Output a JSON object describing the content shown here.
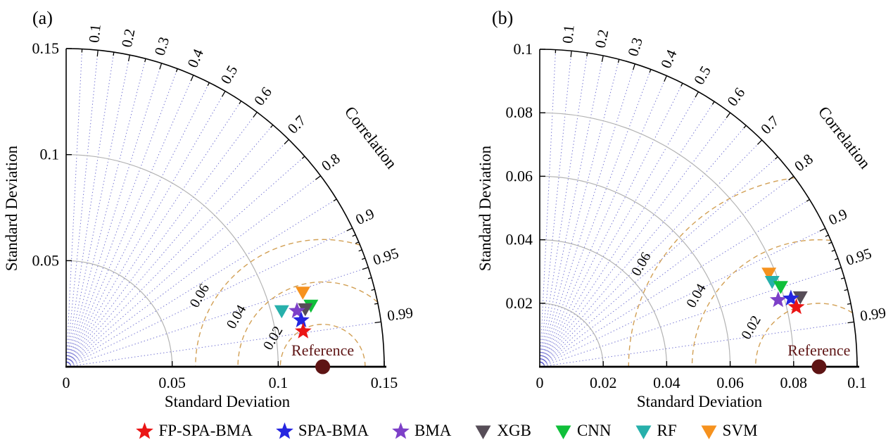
{
  "figure_background": "#ffffff",
  "models": [
    {
      "name": "FP-SPA-BMA",
      "marker": "star",
      "color": "#ea1515"
    },
    {
      "name": "SPA-BMA",
      "marker": "star",
      "color": "#2525e0"
    },
    {
      "name": "BMA",
      "marker": "star",
      "color": "#7d40c8"
    },
    {
      "name": "XGB",
      "marker": "triangle-down",
      "color": "#564d57"
    },
    {
      "name": "CNN",
      "marker": "triangle-down",
      "color": "#10bf3a"
    },
    {
      "name": "RF",
      "marker": "triangle-down",
      "color": "#27b0ab"
    },
    {
      "name": "SVM",
      "marker": "triangle-down",
      "color": "#f6921e"
    }
  ],
  "colors": {
    "correlation_ray": "#5050c8",
    "std_arc": "#b3b3b3",
    "rmse_arc": "#d2a055",
    "axis": "#000000",
    "reference": "#5e1414",
    "text": "#000000"
  },
  "chart_data": [
    {
      "type": "taylor",
      "panel_label": "(a)",
      "xlabel": "Standard Deviation",
      "ylabel": "Standard Deviation",
      "correlation_label": "Correlation",
      "axis_max": 0.15,
      "std_ticks": [
        {
          "value": 0,
          "label": "0"
        },
        {
          "value": 0.05,
          "label": "0.05"
        },
        {
          "value": 0.1,
          "label": "0.1"
        },
        {
          "value": 0.15,
          "label": "0.15"
        }
      ],
      "corr_labeled_ticks": [
        {
          "value": 0.1,
          "label": "0.1"
        },
        {
          "value": 0.2,
          "label": "0.2"
        },
        {
          "value": 0.3,
          "label": "0.3"
        },
        {
          "value": 0.4,
          "label": "0.4"
        },
        {
          "value": 0.5,
          "label": "0.5"
        },
        {
          "value": 0.6,
          "label": "0.6"
        },
        {
          "value": 0.7,
          "label": "0.7"
        },
        {
          "value": 0.8,
          "label": "0.8"
        },
        {
          "value": 0.9,
          "label": "0.9"
        },
        {
          "value": 0.95,
          "label": "0.95"
        },
        {
          "value": 0.99,
          "label": "0.99"
        }
      ],
      "corr_minor_ticks": [
        0.05,
        0.15,
        0.25,
        0.35,
        0.45,
        0.55,
        0.65,
        0.75,
        0.85,
        0.91,
        0.92,
        0.93,
        0.94,
        0.96,
        0.97,
        0.98
      ],
      "corr_rays": [
        0.05,
        0.1,
        0.15,
        0.2,
        0.25,
        0.3,
        0.35,
        0.4,
        0.45,
        0.5,
        0.55,
        0.6,
        0.65,
        0.7,
        0.75,
        0.8,
        0.85,
        0.9,
        0.95,
        0.99
      ],
      "rmse_contours": [
        {
          "value": 0.02,
          "label": "0.02"
        },
        {
          "value": 0.04,
          "label": "0.04"
        },
        {
          "value": 0.06,
          "label": "0.06"
        }
      ],
      "reference": {
        "label": "Reference",
        "std": 0.121
      },
      "series": [
        {
          "name": "FP-SPA-BMA",
          "std": 0.113,
          "corr": 0.989
        },
        {
          "name": "SPA-BMA",
          "std": 0.113,
          "corr": 0.981
        },
        {
          "name": "BMA",
          "std": 0.112,
          "corr": 0.972
        },
        {
          "name": "XGB",
          "std": 0.116,
          "corr": 0.972
        },
        {
          "name": "CNN",
          "std": 0.119,
          "corr": 0.97
        },
        {
          "name": "RF",
          "std": 0.105,
          "corr": 0.968
        },
        {
          "name": "SVM",
          "std": 0.117,
          "corr": 0.954
        }
      ]
    },
    {
      "type": "taylor",
      "panel_label": "(b)",
      "xlabel": "Standard Deviation",
      "ylabel": "Standard Deviation",
      "correlation_label": "Correlation",
      "axis_max": 0.1,
      "std_ticks": [
        {
          "value": 0,
          "label": "0"
        },
        {
          "value": 0.02,
          "label": "0.02"
        },
        {
          "value": 0.04,
          "label": "0.04"
        },
        {
          "value": 0.06,
          "label": "0.06"
        },
        {
          "value": 0.08,
          "label": "0.08"
        },
        {
          "value": 0.1,
          "label": "0.1"
        }
      ],
      "corr_labeled_ticks": [
        {
          "value": 0.1,
          "label": "0.1"
        },
        {
          "value": 0.2,
          "label": "0.2"
        },
        {
          "value": 0.3,
          "label": "0.3"
        },
        {
          "value": 0.4,
          "label": "0.4"
        },
        {
          "value": 0.5,
          "label": "0.5"
        },
        {
          "value": 0.6,
          "label": "0.6"
        },
        {
          "value": 0.7,
          "label": "0.7"
        },
        {
          "value": 0.8,
          "label": "0.8"
        },
        {
          "value": 0.9,
          "label": "0.9"
        },
        {
          "value": 0.95,
          "label": "0.95"
        },
        {
          "value": 0.99,
          "label": "0.99"
        }
      ],
      "corr_minor_ticks": [
        0.05,
        0.15,
        0.25,
        0.35,
        0.45,
        0.55,
        0.65,
        0.75,
        0.85,
        0.91,
        0.92,
        0.93,
        0.94,
        0.96,
        0.97,
        0.98
      ],
      "corr_rays": [
        0.05,
        0.1,
        0.15,
        0.2,
        0.25,
        0.3,
        0.35,
        0.4,
        0.45,
        0.5,
        0.55,
        0.6,
        0.65,
        0.7,
        0.75,
        0.8,
        0.85,
        0.9,
        0.95,
        0.99
      ],
      "rmse_contours": [
        {
          "value": 0.02,
          "label": "0.02"
        },
        {
          "value": 0.04,
          "label": "0.04"
        },
        {
          "value": 0.06,
          "label": "0.06"
        }
      ],
      "reference": {
        "label": "Reference",
        "std": 0.088
      },
      "series": [
        {
          "name": "FP-SPA-BMA",
          "std": 0.083,
          "corr": 0.974
        },
        {
          "name": "SPA-BMA",
          "std": 0.082,
          "corr": 0.965
        },
        {
          "name": "BMA",
          "std": 0.078,
          "corr": 0.963
        },
        {
          "name": "XGB",
          "std": 0.085,
          "corr": 0.966
        },
        {
          "name": "CNN",
          "std": 0.08,
          "corr": 0.949
        },
        {
          "name": "RF",
          "std": 0.078,
          "corr": 0.939
        },
        {
          "name": "SVM",
          "std": 0.078,
          "corr": 0.926
        }
      ]
    }
  ]
}
